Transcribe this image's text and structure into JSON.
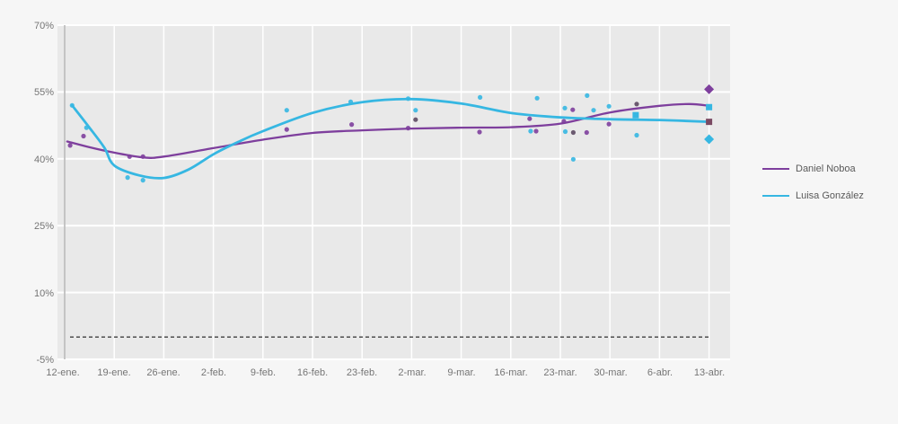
{
  "chart_data": {
    "type": "scatter",
    "subtype": "poll-points-with-trend-lines",
    "categories": [
      "12-ene.",
      "19-ene.",
      "26-ene.",
      "2-feb.",
      "9-feb.",
      "16-feb.",
      "23-feb.",
      "2-mar.",
      "9-mar.",
      "16-mar.",
      "23-mar.",
      "30-mar.",
      "6-abr.",
      "13-abr."
    ],
    "y_ticks": [
      "70%",
      "55%",
      "40%",
      "25%",
      "10%",
      "-5%"
    ],
    "y_tick_values": [
      70,
      55,
      40,
      25,
      10,
      -5
    ],
    "ylim": [
      -5,
      70
    ],
    "xlim_weeks": [
      0,
      13
    ],
    "grid": "white gridlines on light gray plot area",
    "legend_position": "right",
    "reference_line": {
      "value": 0,
      "style": "dashed",
      "color": "#404040"
    },
    "series": [
      {
        "name": "Daniel Noboa",
        "color": "#7e3f9d",
        "dark_point_color": "#5d4a63",
        "trend": [
          [
            0.05,
            43.9
          ],
          [
            0.5,
            42.6
          ],
          [
            1,
            41.4
          ],
          [
            1.6,
            40.3
          ],
          [
            2,
            40.5
          ],
          [
            3,
            42.4
          ],
          [
            4,
            44.3
          ],
          [
            5,
            45.8
          ],
          [
            6,
            46.4
          ],
          [
            7,
            46.8
          ],
          [
            8,
            47.0
          ],
          [
            9,
            47.1
          ],
          [
            10,
            47.9
          ],
          [
            11,
            50.4
          ],
          [
            12,
            51.9
          ],
          [
            12.6,
            52.3
          ],
          [
            13,
            51.9
          ]
        ],
        "points": [
          [
            0.11,
            43.0
          ],
          [
            0.38,
            45.1
          ],
          [
            1.31,
            40.5
          ],
          [
            1.58,
            40.5
          ],
          [
            4.48,
            46.6
          ],
          [
            5.79,
            47.7
          ],
          [
            6.93,
            46.9
          ],
          [
            7.08,
            48.8,
            "dark"
          ],
          [
            8.37,
            46.0
          ],
          [
            9.38,
            49.0
          ],
          [
            9.51,
            46.2
          ],
          [
            10.07,
            48.4
          ],
          [
            10.25,
            51.0
          ],
          [
            10.26,
            45.9,
            "dark"
          ],
          [
            10.53,
            45.9
          ],
          [
            10.98,
            47.8
          ],
          [
            11.54,
            52.3,
            "dark"
          ]
        ],
        "markers": [
          {
            "x": 13,
            "y": 55.6,
            "shape": "diamond"
          },
          {
            "x": 13,
            "y": 48.3,
            "shape": "square",
            "color": "#7a4a63"
          }
        ]
      },
      {
        "name": "Luisa González",
        "color": "#36b7e2",
        "trend": [
          [
            0.15,
            52.0
          ],
          [
            0.5,
            47.0
          ],
          [
            0.8,
            42.5
          ],
          [
            1,
            38.5
          ],
          [
            1.5,
            36.3
          ],
          [
            2,
            35.7
          ],
          [
            2.5,
            37.6
          ],
          [
            3,
            41.0
          ],
          [
            3.5,
            43.8
          ],
          [
            4,
            46.2
          ],
          [
            5,
            50.3
          ],
          [
            6,
            52.7
          ],
          [
            7,
            53.4
          ],
          [
            8,
            52.4
          ],
          [
            9,
            50.3
          ],
          [
            10,
            49.3
          ],
          [
            11,
            48.9
          ],
          [
            12,
            48.7
          ],
          [
            13,
            48.3
          ]
        ],
        "points": [
          [
            0.15,
            52.0
          ],
          [
            0.44,
            47.0
          ],
          [
            1.27,
            35.8
          ],
          [
            1.58,
            35.2
          ],
          [
            4.48,
            50.9
          ],
          [
            5.77,
            52.8
          ],
          [
            6.93,
            53.5
          ],
          [
            7.08,
            50.9
          ],
          [
            8.38,
            53.8
          ],
          [
            9.4,
            46.2
          ],
          [
            9.53,
            53.6
          ],
          [
            10.09,
            51.4
          ],
          [
            10.1,
            46.1
          ],
          [
            10.26,
            39.9
          ],
          [
            10.54,
            54.2
          ],
          [
            10.67,
            50.9
          ],
          [
            10.98,
            51.8
          ],
          [
            11.54,
            45.3
          ]
        ],
        "markers": [
          {
            "x": 13,
            "y": 44.4,
            "shape": "diamond"
          },
          {
            "x": 13,
            "y": 51.6,
            "shape": "square"
          },
          {
            "x": 11.52,
            "y": 49.8,
            "shape": "square"
          }
        ]
      }
    ],
    "legend": {
      "entries": [
        "Daniel Noboa",
        "Luisa González"
      ]
    }
  }
}
